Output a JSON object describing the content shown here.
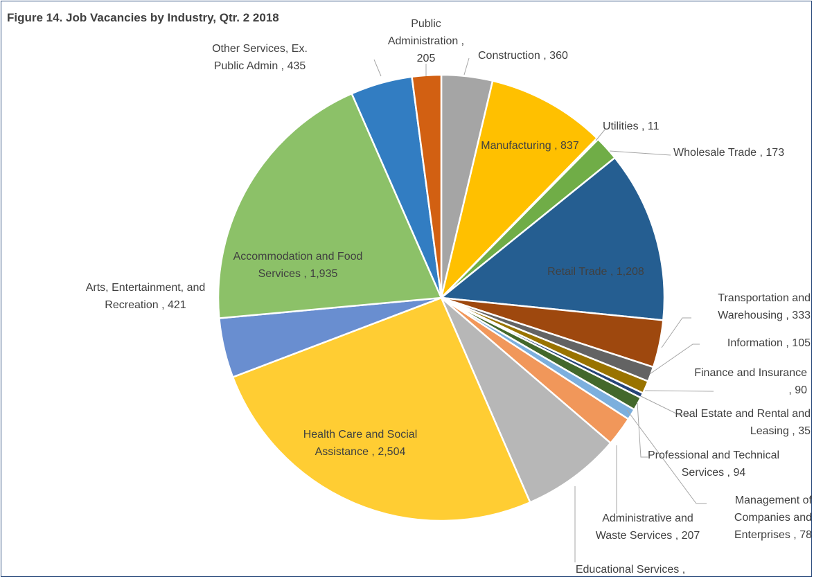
{
  "chart_data": {
    "type": "pie",
    "title": "Figure 14. Job Vacancies by Industry, Qtr. 2 2018",
    "label_separator": " , ",
    "categories": [
      "Construction",
      "Manufacturing",
      "Utilities",
      "Wholesale Trade",
      "Retail Trade",
      "Transportation and Warehousing",
      "Information",
      "Finance and Insurance",
      "Real Estate and Rental and Leasing",
      "Professional and Technical Services",
      "Management of Companies and Enterprises",
      "Administrative and Waste Services",
      "Educational Services",
      "Health Care and Social Assistance",
      "Arts, Entertainment, and Recreation",
      "Accommodation and Food Services",
      "Other Services, Ex. Public Admin",
      "Public Administration"
    ],
    "values": [
      360,
      837,
      11,
      173,
      1208,
      333,
      105,
      90,
      35,
      94,
      78,
      207,
      700,
      2504,
      421,
      1935,
      435,
      205
    ],
    "value_labels": [
      "360",
      "837",
      "11",
      "173",
      "1,208",
      "333",
      "105",
      "90",
      "35",
      "94",
      "78",
      "207",
      null,
      "2,504",
      "421",
      "1,935",
      "435",
      "205"
    ],
    "colors": [
      "#a5a5a5",
      "#ffc000",
      "#5b9bd5",
      "#70ad47",
      "#255e91",
      "#9e480e",
      "#636363",
      "#997300",
      "#264478",
      "#43682b",
      "#7cafdd",
      "#f1975a",
      "#b7b7b7",
      "#ffcd33",
      "#698ed0",
      "#8cc168",
      "#327dc2",
      "#d26012"
    ]
  }
}
